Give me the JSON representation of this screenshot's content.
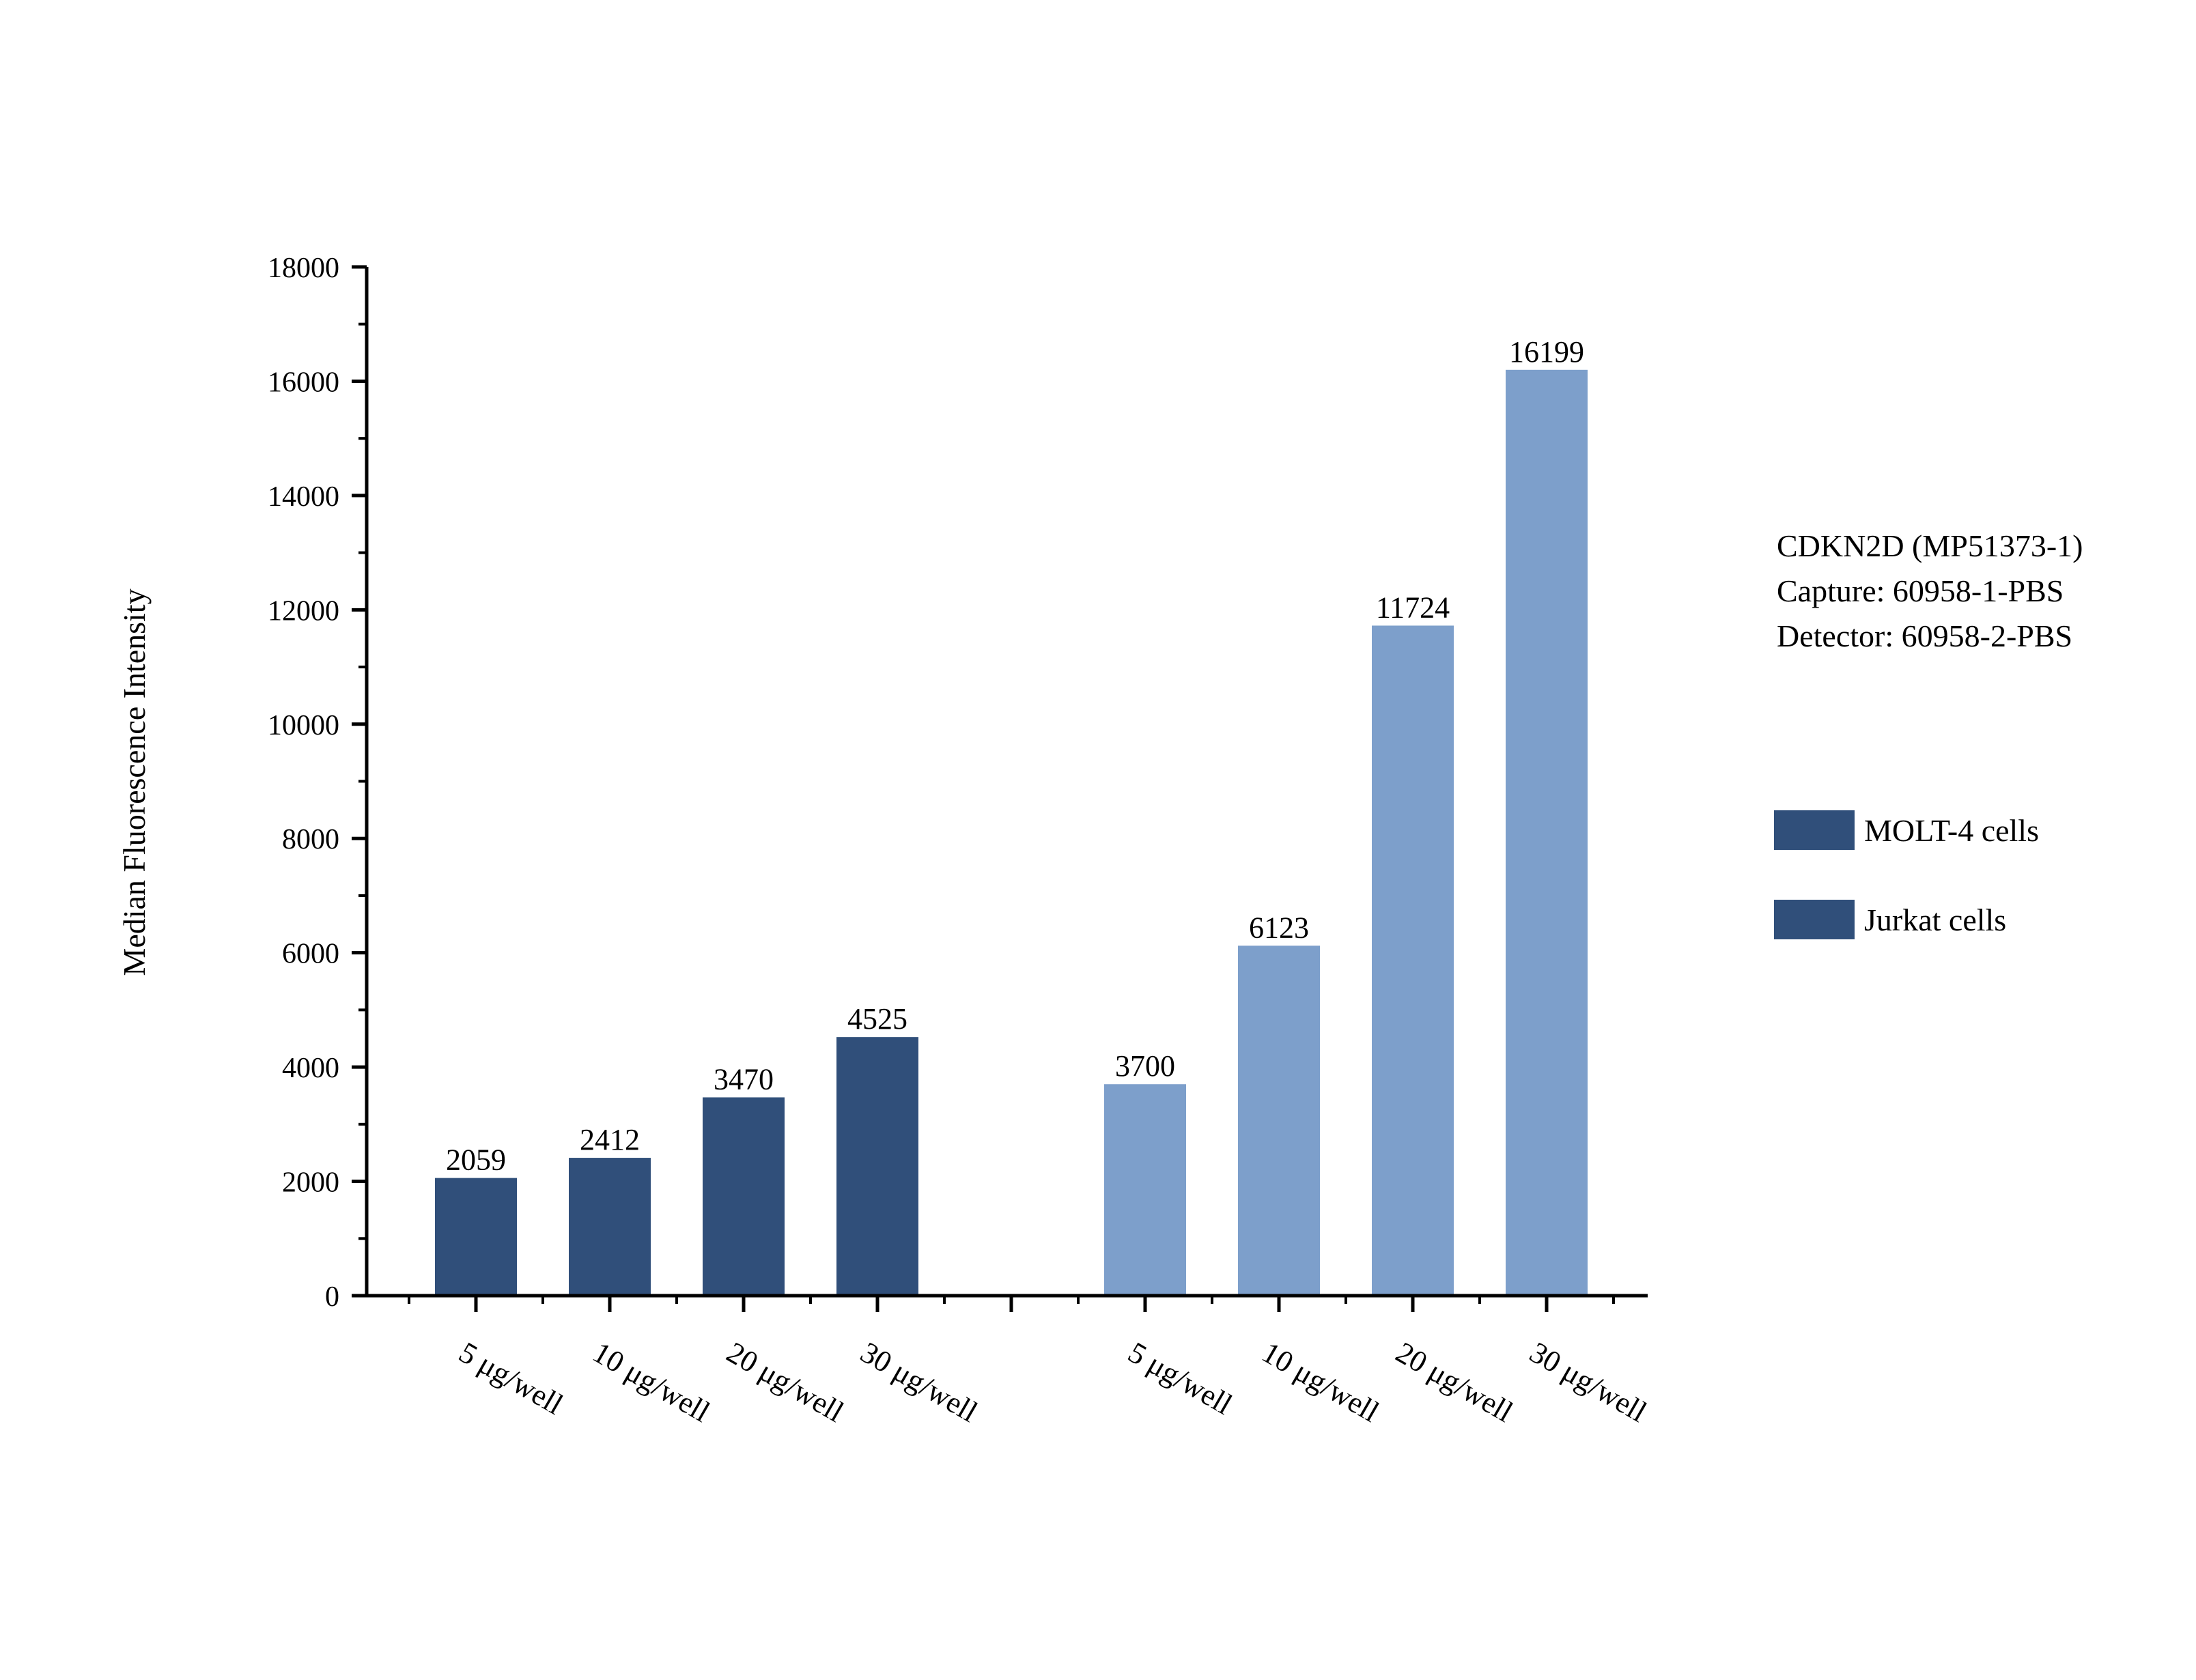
{
  "chart_data": {
    "type": "bar",
    "ylabel": "Median Fluorescence Intensity",
    "ylim": [
      0,
      18000
    ],
    "yticks": [
      0,
      2000,
      4000,
      6000,
      8000,
      10000,
      12000,
      14000,
      16000,
      18000
    ],
    "annotation": [
      "CDKN2D (MP51373-1)",
      "Capture: 60958-1-PBS",
      "Detector: 60958-2-PBS"
    ],
    "legend_position": "right",
    "groups": [
      {
        "name": "MOLT-4 cells",
        "color": "#304f7a",
        "categories": [
          "5 μg/well",
          "10 μg/well",
          "20 μg/well",
          "30 μg/well"
        ],
        "values": [
          2059,
          2412,
          3470,
          4525
        ]
      },
      {
        "name": "Jurkat cells",
        "color": "#7d9fcb",
        "legend_color": "#304f7a",
        "categories": [
          "5 μg/well",
          "10 μg/well",
          "20 μg/well",
          "30 μg/well"
        ],
        "values": [
          3700,
          6123,
          11724,
          16199
        ]
      }
    ]
  }
}
